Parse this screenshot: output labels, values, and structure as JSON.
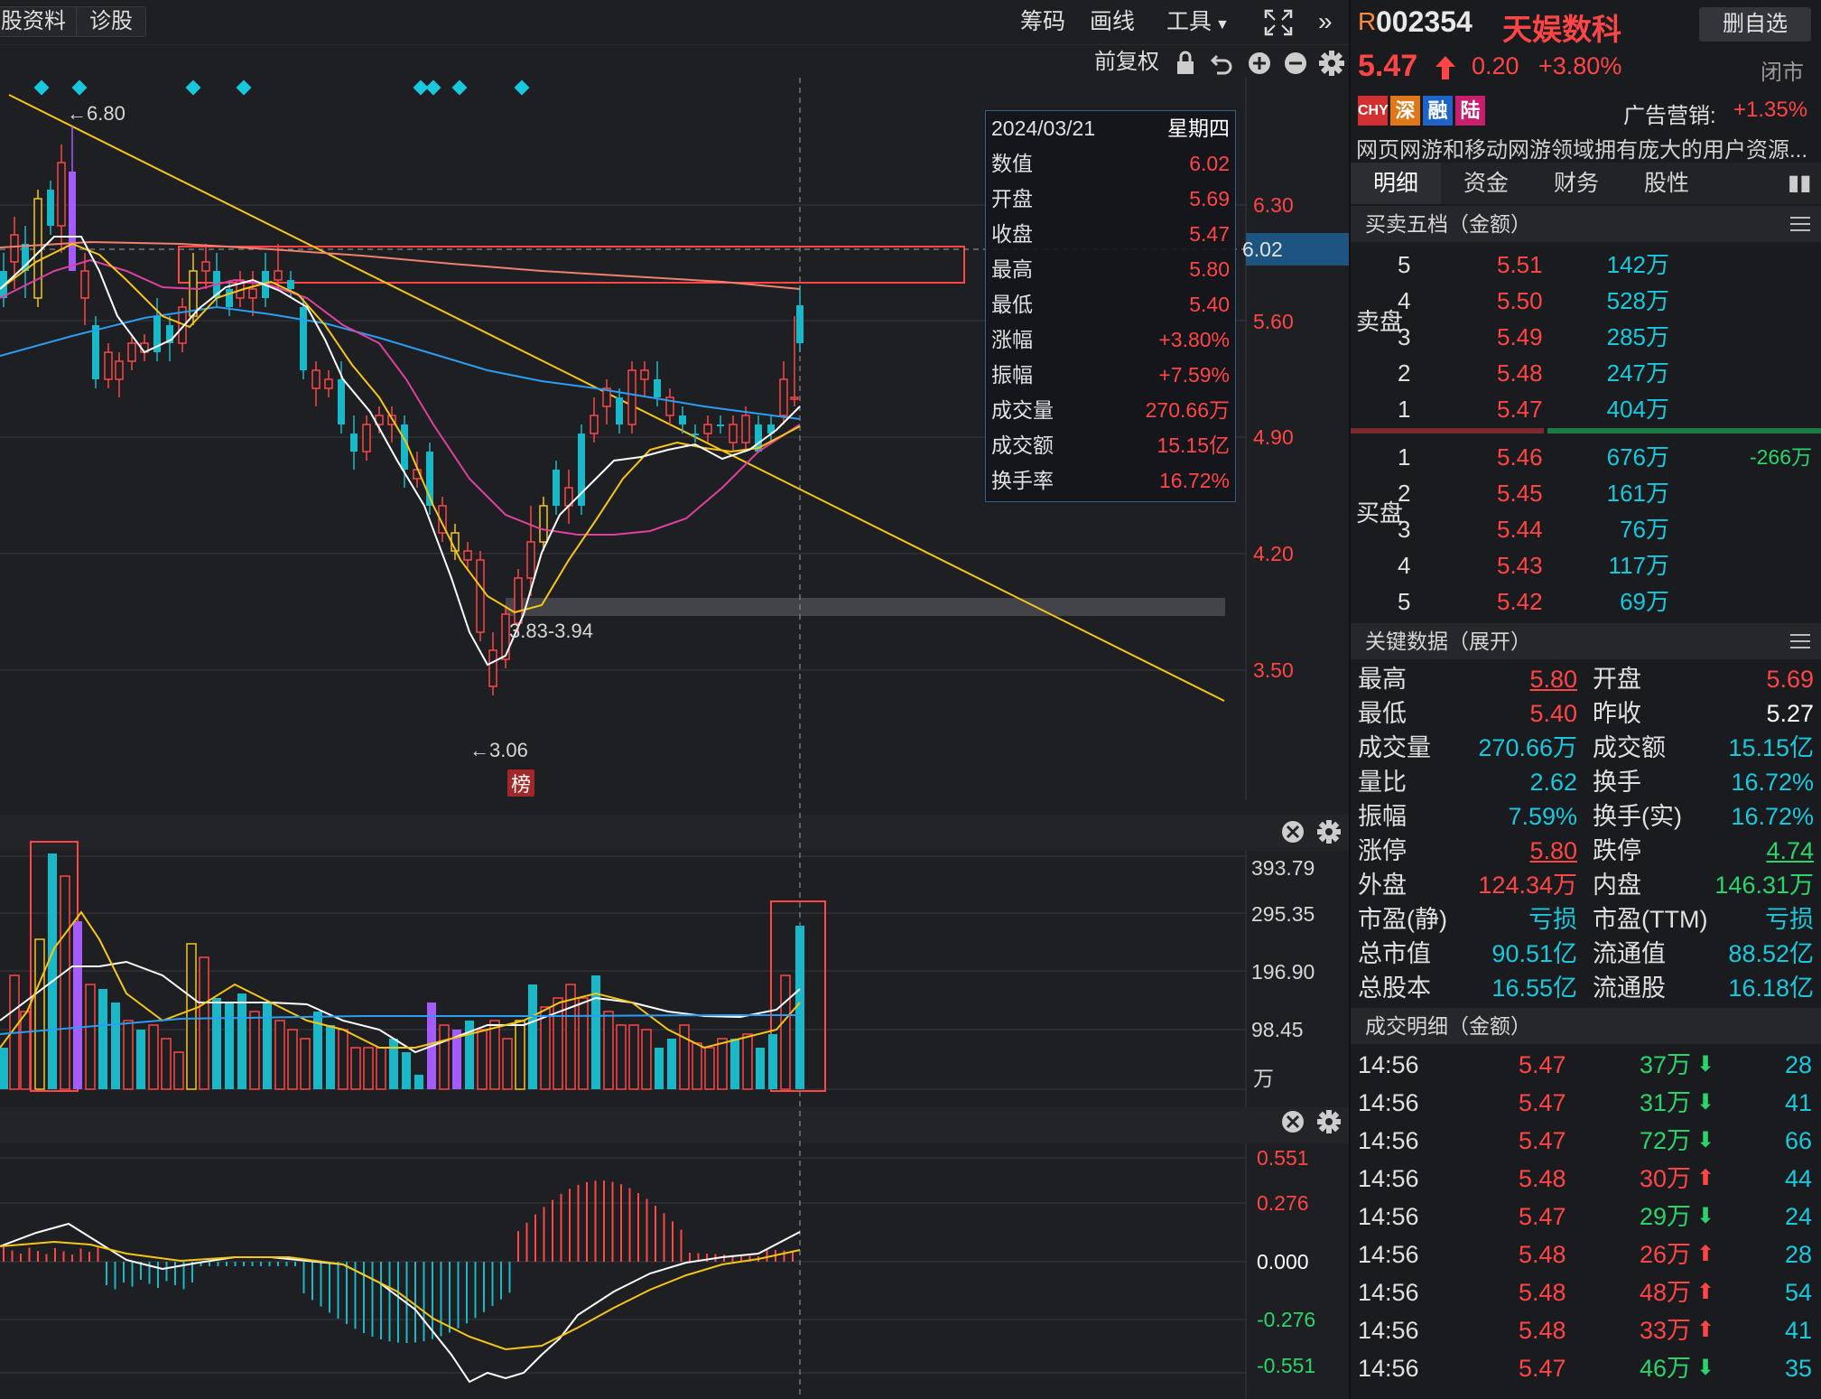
{
  "toolbar": {
    "tab_profile": "股资料",
    "tab_diagnose": "诊股",
    "chips": "筹码",
    "draw": "画线",
    "tools": "工具",
    "adjust": "前复权"
  },
  "price_axis": [
    "6.30",
    "5.60",
    "4.90",
    "4.20",
    "3.50"
  ],
  "crosshair_price": "6.02",
  "annotations": {
    "high": "←6.80",
    "low": "←3.06",
    "range": "3.83-3.94",
    "bang": "榜"
  },
  "info_box": {
    "date": "2024/03/21",
    "weekday": "星期四",
    "rows": [
      {
        "k": "数值",
        "v": "6.02"
      },
      {
        "k": "开盘",
        "v": "5.69"
      },
      {
        "k": "收盘",
        "v": "5.47"
      },
      {
        "k": "最高",
        "v": "5.80"
      },
      {
        "k": "最低",
        "v": "5.40"
      },
      {
        "k": "涨幅",
        "v": "+3.80%"
      },
      {
        "k": "振幅",
        "v": "+7.59%"
      },
      {
        "k": "成交量",
        "v": "270.66万"
      },
      {
        "k": "成交额",
        "v": "15.15亿"
      },
      {
        "k": "换手率",
        "v": "16.72%"
      }
    ]
  },
  "volume_axis": [
    "393.79",
    "295.35",
    "196.90",
    "98.45",
    "万"
  ],
  "macd_axis": [
    "0.551",
    "0.276",
    "0.000",
    "-0.276",
    "-0.551"
  ],
  "stock": {
    "flag": "R",
    "code": "002354",
    "name": "天娱数科",
    "remove_btn": "删自选",
    "price": "5.47",
    "change": "0.20",
    "change_pct": "+3.80%",
    "status": "闭市",
    "badges": [
      "CHY",
      "深",
      "融",
      "陆"
    ],
    "ad_label": "广告营销:",
    "ad_value": "+1.35%",
    "desc": "网页网游和移动网游领域拥有庞大的用户资源..."
  },
  "tabs": [
    "明细",
    "资金",
    "财务",
    "股性"
  ],
  "order_book": {
    "title": "买卖五档（金额）",
    "sell_label": "卖盘",
    "buy_label": "买盘",
    "sell": [
      {
        "lvl": "5",
        "price": "5.51",
        "amt": "142万"
      },
      {
        "lvl": "4",
        "price": "5.50",
        "amt": "528万"
      },
      {
        "lvl": "3",
        "price": "5.49",
        "amt": "285万"
      },
      {
        "lvl": "2",
        "price": "5.48",
        "amt": "247万"
      },
      {
        "lvl": "1",
        "price": "5.47",
        "amt": "404万"
      }
    ],
    "buy": [
      {
        "lvl": "1",
        "price": "5.46",
        "amt": "676万",
        "extra": "-266万"
      },
      {
        "lvl": "2",
        "price": "5.45",
        "amt": "161万",
        "extra": ""
      },
      {
        "lvl": "3",
        "price": "5.44",
        "amt": "76万",
        "extra": ""
      },
      {
        "lvl": "4",
        "price": "5.43",
        "amt": "117万",
        "extra": ""
      },
      {
        "lvl": "5",
        "price": "5.42",
        "amt": "69万",
        "extra": ""
      }
    ]
  },
  "key_data": {
    "title": "关键数据（展开）",
    "rows": [
      {
        "k1": "最高",
        "v1": "5.80",
        "k2": "开盘",
        "v2": "5.69"
      },
      {
        "k1": "最低",
        "v1": "5.40",
        "k2": "昨收",
        "v2": "5.27"
      },
      {
        "k1": "成交量",
        "v1": "270.66万",
        "k2": "成交额",
        "v2": "15.15亿"
      },
      {
        "k1": "量比",
        "v1": "2.62",
        "k2": "换手",
        "v2": "16.72%"
      },
      {
        "k1": "振幅",
        "v1": "7.59%",
        "k2": "换手(实)",
        "v2": "16.72%"
      },
      {
        "k1": "涨停",
        "v1": "5.80",
        "k2": "跌停",
        "v2": "4.74"
      },
      {
        "k1": "外盘",
        "v1": "124.34万",
        "k2": "内盘",
        "v2": "146.31万"
      },
      {
        "k1": "市盈(静)",
        "v1": "亏损",
        "k2": "市盈(TTM)",
        "v2": "亏损"
      },
      {
        "k1": "总市值",
        "v1": "90.51亿",
        "k2": "流通值",
        "v2": "88.52亿"
      },
      {
        "k1": "总股本",
        "v1": "16.55亿",
        "k2": "流通股",
        "v2": "16.18亿"
      }
    ]
  },
  "trade_detail": {
    "title": "成交明细（金额）",
    "rows": [
      {
        "t": "14:56",
        "p": "5.47",
        "a": "37万",
        "dir": "down",
        "n": "28"
      },
      {
        "t": "14:56",
        "p": "5.47",
        "a": "31万",
        "dir": "down",
        "n": "41"
      },
      {
        "t": "14:56",
        "p": "5.47",
        "a": "72万",
        "dir": "down",
        "n": "66"
      },
      {
        "t": "14:56",
        "p": "5.48",
        "a": "30万",
        "dir": "up",
        "n": "44"
      },
      {
        "t": "14:56",
        "p": "5.47",
        "a": "29万",
        "dir": "down",
        "n": "24"
      },
      {
        "t": "14:56",
        "p": "5.48",
        "a": "26万",
        "dir": "up",
        "n": "28"
      },
      {
        "t": "14:56",
        "p": "5.48",
        "a": "48万",
        "dir": "up",
        "n": "54"
      },
      {
        "t": "14:56",
        "p": "5.48",
        "a": "33万",
        "dir": "up",
        "n": "41"
      },
      {
        "t": "14:56",
        "p": "5.47",
        "a": "46万",
        "dir": "down",
        "n": "35"
      }
    ]
  },
  "colors": {
    "up": "#ff4545",
    "down": "#18b8c8",
    "ma5": "#ffffff",
    "ma10": "#f5c518",
    "ma20": "#e040a0",
    "ma60": "#2a9df4",
    "ma120": "#f08070"
  }
}
